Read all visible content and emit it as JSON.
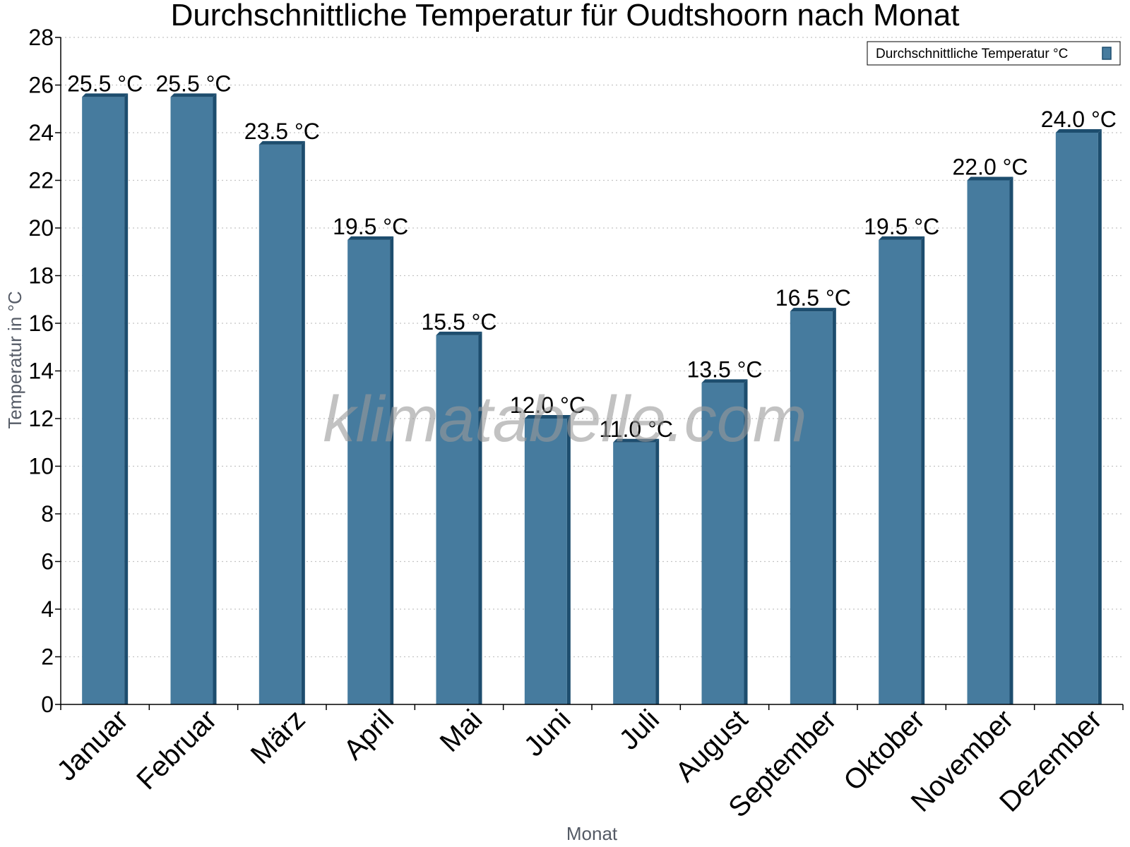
{
  "chart_data": {
    "type": "bar",
    "title": "Durchschnittliche Temperatur für Oudtshoorn nach Monat",
    "xlabel": "Monat",
    "ylabel": "Temperatur in °C",
    "categories": [
      "Januar",
      "Februar",
      "März",
      "April",
      "Mai",
      "Juni",
      "Juli",
      "August",
      "September",
      "Oktober",
      "November",
      "Dezember"
    ],
    "series": [
      {
        "name": "Durchschnittliche Temperatur °C",
        "values": [
          25.5,
          25.5,
          23.5,
          19.5,
          15.5,
          12.0,
          11.0,
          13.5,
          16.5,
          19.5,
          22.0,
          24.0
        ],
        "labels": [
          "25.5 °C",
          "25.5 °C",
          "23.5 °C",
          "19.5 °C",
          "15.5 °C",
          "12.0 °C",
          "11.0 °C",
          "13.5 °C",
          "16.5 °C",
          "19.5 °C",
          "22.0 °C",
          "24.0 °C"
        ]
      }
    ],
    "ylim": [
      0,
      28
    ],
    "yticks": [
      0,
      2,
      4,
      6,
      8,
      10,
      12,
      14,
      16,
      18,
      20,
      22,
      24,
      26,
      28
    ],
    "grid": true,
    "legend_position": "top-right",
    "bar_color": "#467b9e",
    "bar_edge_color": "#1d4d6e",
    "watermark": "klimatabelle.com"
  }
}
